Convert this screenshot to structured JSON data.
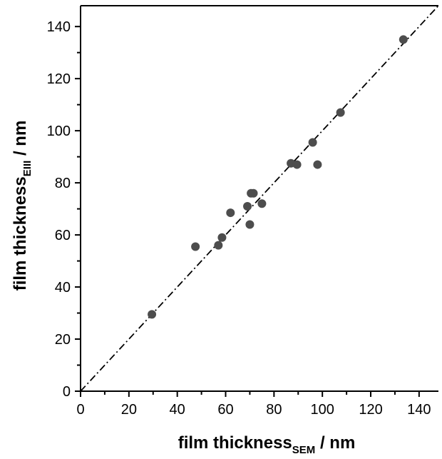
{
  "chart_data": {
    "type": "scatter",
    "title": "",
    "xlabel": {
      "main": "film thickness",
      "sub": "SEM",
      "suffix": " / nm"
    },
    "ylabel": {
      "main": "film thickness",
      "sub": "EIII",
      "suffix": " / nm"
    },
    "xlim": [
      0,
      148
    ],
    "ylim": [
      0,
      148
    ],
    "xticks": [
      0,
      20,
      40,
      60,
      80,
      100,
      120,
      140
    ],
    "yticks": [
      0,
      20,
      40,
      60,
      80,
      100,
      120,
      140
    ],
    "grid": false,
    "legend": "none",
    "reference_line": {
      "type": "identity",
      "style": "dash-dot"
    },
    "series": [
      {
        "marker_color": "#4d4d4d",
        "x": [
          29.5,
          47.5,
          57,
          58.5,
          62,
          69,
          70,
          70.5,
          71.5,
          75,
          87,
          89.5,
          96,
          98,
          107.5,
          133.5
        ],
        "y": [
          29.5,
          55.5,
          56,
          59,
          68.5,
          71,
          64,
          76,
          76,
          72,
          87.5,
          87,
          95.5,
          87,
          107,
          135
        ]
      }
    ]
  }
}
